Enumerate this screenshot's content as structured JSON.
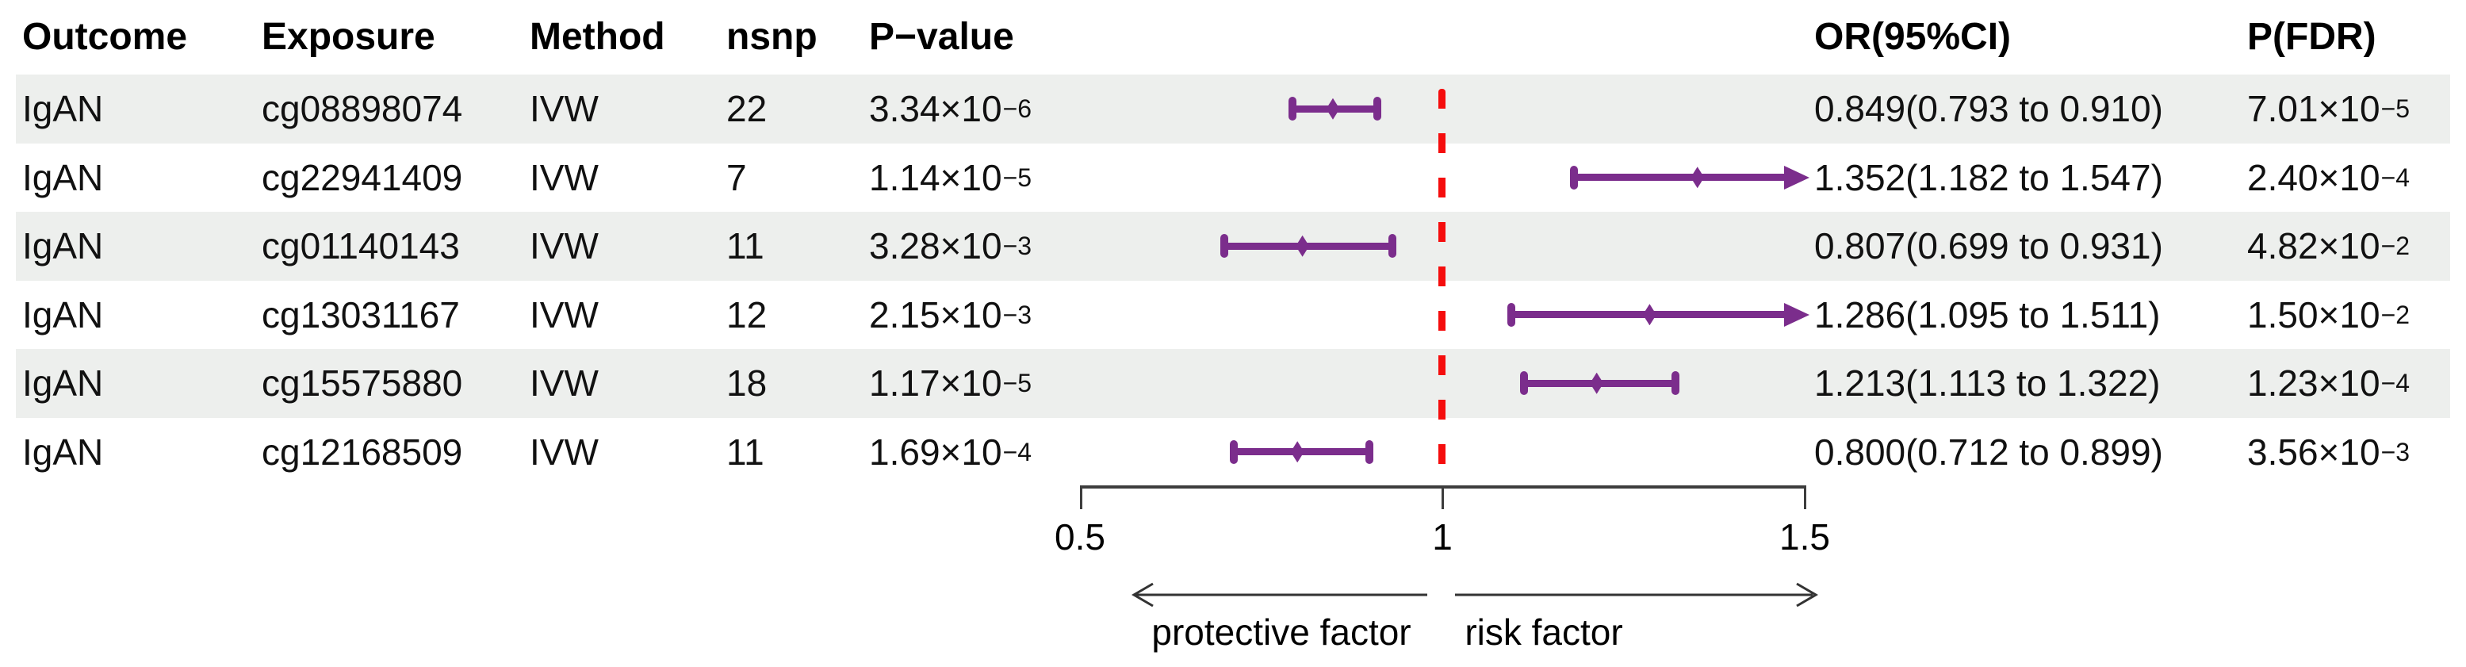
{
  "chart_data": {
    "type": "table",
    "subtype": "forest-plot",
    "headers": {
      "outcome": "Outcome",
      "exposure": "Exposure",
      "method": "Method",
      "nsnp": "nsnp",
      "pvalue": "P−value",
      "or_ci": "OR(95%CI)",
      "pfdr": "P(FDR)"
    },
    "rows": [
      {
        "outcome": "IgAN",
        "exposure": "cg08898074",
        "method": "IVW",
        "nsnp": "22",
        "p_base": "3.34×10",
        "p_exp": "−6",
        "or": 0.849,
        "ci_low": 0.793,
        "ci_high": 0.91,
        "or_text": "0.849(0.793 to 0.910)",
        "fdr_base": "7.01×10",
        "fdr_exp": "−5"
      },
      {
        "outcome": "IgAN",
        "exposure": "cg22941409",
        "method": "IVW",
        "nsnp": "7",
        "p_base": "1.14×10",
        "p_exp": "−5",
        "or": 1.352,
        "ci_low": 1.182,
        "ci_high": 1.547,
        "or_text": "1.352(1.182 to 1.547)",
        "fdr_base": "2.40×10",
        "fdr_exp": "−4"
      },
      {
        "outcome": "IgAN",
        "exposure": "cg01140143",
        "method": "IVW",
        "nsnp": "11",
        "p_base": "3.28×10",
        "p_exp": "−3",
        "or": 0.807,
        "ci_low": 0.699,
        "ci_high": 0.931,
        "or_text": "0.807(0.699 to 0.931)",
        "fdr_base": "4.82×10",
        "fdr_exp": "−2"
      },
      {
        "outcome": "IgAN",
        "exposure": "cg13031167",
        "method": "IVW",
        "nsnp": "12",
        "p_base": "2.15×10",
        "p_exp": "−3",
        "or": 1.286,
        "ci_low": 1.095,
        "ci_high": 1.511,
        "or_text": "1.286(1.095 to 1.511)",
        "fdr_base": "1.50×10",
        "fdr_exp": "−2"
      },
      {
        "outcome": "IgAN",
        "exposure": "cg15575880",
        "method": "IVW",
        "nsnp": "18",
        "p_base": "1.17×10",
        "p_exp": "−5",
        "or": 1.213,
        "ci_low": 1.113,
        "ci_high": 1.322,
        "or_text": "1.213(1.113 to 1.322)",
        "fdr_base": "1.23×10",
        "fdr_exp": "−4"
      },
      {
        "outcome": "IgAN",
        "exposure": "cg12168509",
        "method": "IVW",
        "nsnp": "11",
        "p_base": "1.69×10",
        "p_exp": "−4",
        "or": 0.8,
        "ci_low": 0.712,
        "ci_high": 0.899,
        "or_text": "0.800(0.712 to 0.899)",
        "fdr_base": "3.56×10",
        "fdr_exp": "−3"
      }
    ],
    "forest": {
      "xlim": [
        0.5,
        1.5
      ],
      "ref_line": 1,
      "tick_labels": [
        "0.5",
        "1",
        "1.5"
      ],
      "ticks": [
        0.5,
        1,
        1.5
      ],
      "left_label": "protective factor",
      "right_label": "risk factor",
      "marker_color": "#7b2d8c",
      "ref_line_color": "#f50d0d",
      "zebra_color": "#edefed"
    }
  }
}
